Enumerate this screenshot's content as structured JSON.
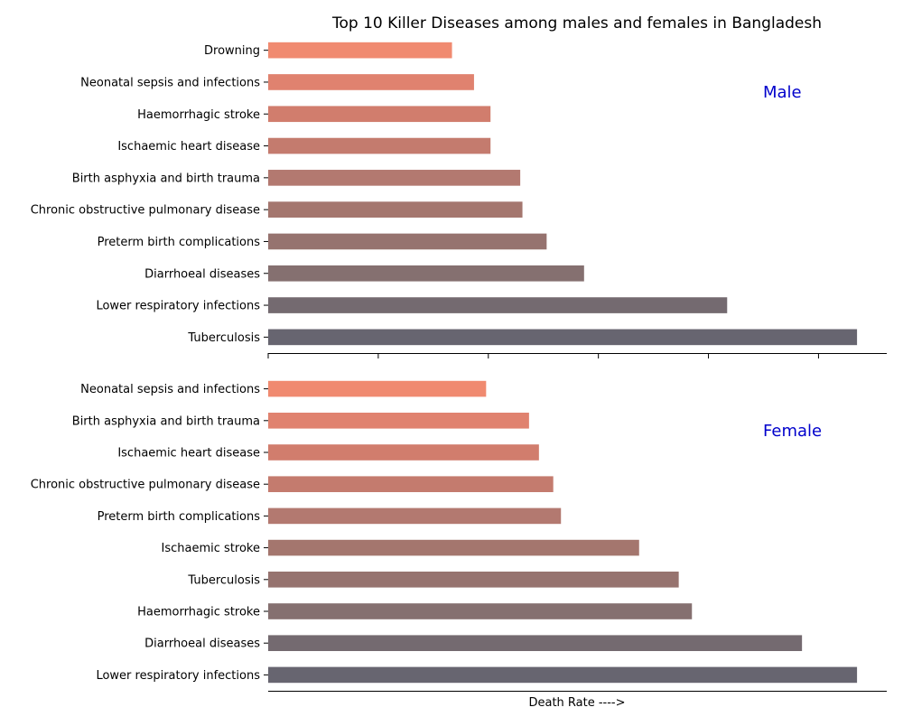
{
  "chart_data": [
    {
      "type": "bar",
      "orientation": "horizontal",
      "title": "Top 10 Killer Diseases among males and females in Bangladesh",
      "panel_label": "Male",
      "categories": [
        "Tuberculosis",
        "Lower respiratory infections",
        "Diarrhoeal diseases",
        "Preterm birth complications",
        "Chronic obstructive pulmonary disease",
        "Birth asphyxia and birth trauma",
        "Ischaemic heart disease",
        "Haemorrhagic stroke",
        "Neonatal sepsis and infections",
        "Drowning"
      ],
      "values": [
        53.5,
        41.7,
        28.7,
        25.3,
        23.1,
        22.9,
        20.2,
        20.2,
        18.7,
        16.7
      ],
      "xlim": [
        0,
        56.2
      ],
      "xticks": [
        0,
        10,
        20,
        30,
        40,
        50
      ],
      "colors": [
        "#676570",
        "#746a70",
        "#857070",
        "#96736f",
        "#a4766e",
        "#b37970",
        "#c47b6e",
        "#d17d6d",
        "#e0826f",
        "#f08a70"
      ],
      "xlabel": ""
    },
    {
      "type": "bar",
      "orientation": "horizontal",
      "panel_label": "Female",
      "categories": [
        "Lower respiratory infections",
        "Diarrhoeal diseases",
        "Haemorrhagic stroke",
        "Tuberculosis",
        "Ischaemic stroke",
        "Preterm birth complications",
        "Chronic obstructive pulmonary disease",
        "Ischaemic heart disease",
        "Birth asphyxia and birth trauma",
        "Neonatal sepsis and infections"
      ],
      "values": [
        53.5,
        48.5,
        38.5,
        37.3,
        33.7,
        26.6,
        25.9,
        24.6,
        23.7,
        19.8
      ],
      "xlim": [
        0,
        56.2
      ],
      "colors": [
        "#676570",
        "#746a70",
        "#857070",
        "#96736f",
        "#a4766e",
        "#b37970",
        "#c47b6e",
        "#d17d6d",
        "#e0826f",
        "#f08a70"
      ],
      "xlabel": "Death Rate ---->"
    }
  ],
  "label_color": "#0000cc"
}
